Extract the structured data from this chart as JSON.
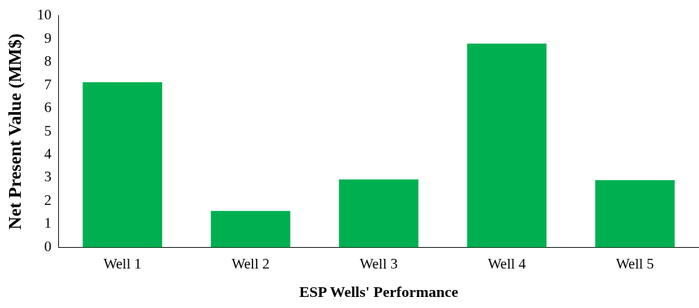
{
  "chart_data": {
    "type": "bar",
    "xlabel": "ESP Wells' Performance",
    "ylabel": "Net Present Value (MM$)",
    "categories": [
      "Well 1",
      "Well 2",
      "Well 3",
      "Well 4",
      "Well 5"
    ],
    "values": [
      7.13,
      1.57,
      2.93,
      8.79,
      2.9
    ],
    "color": "#00b050",
    "ylim": [
      0,
      10
    ],
    "yticks": [
      0,
      1,
      2,
      3,
      4,
      5,
      6,
      7,
      8,
      9,
      10
    ],
    "grid": false,
    "legend": false
  }
}
